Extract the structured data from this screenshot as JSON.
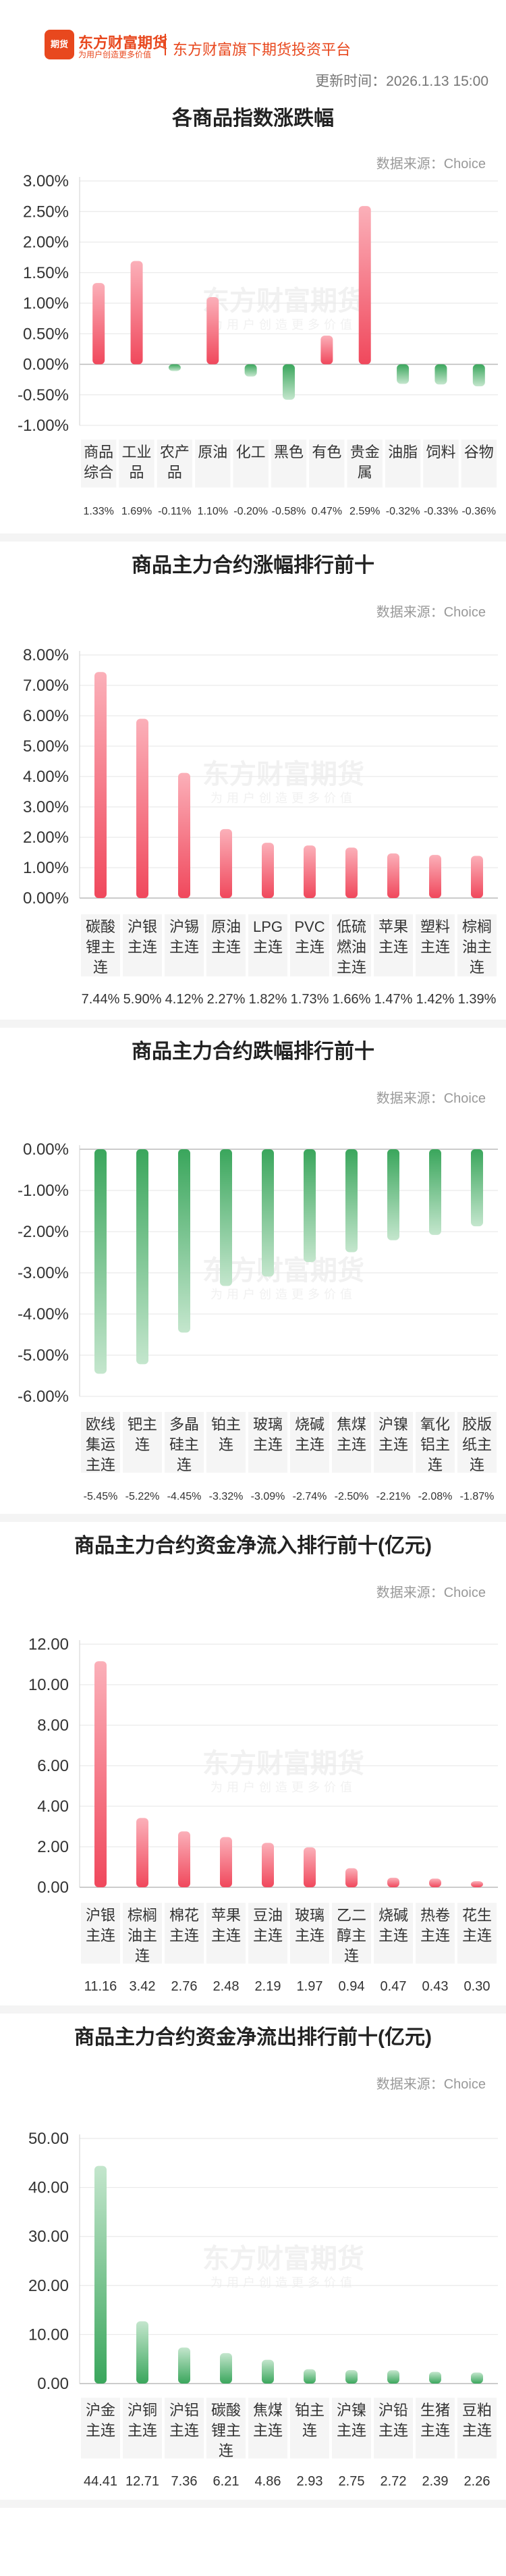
{
  "header": {
    "logo_text": "期货",
    "brand_name": "东方财富期货",
    "brand_slogan": "为用户创造更多价值",
    "tagline": "东方财富旗下期货投资平台",
    "update_label": "更新时间：2026.1.13 15:00"
  },
  "watermark": {
    "main": "东方财富期货",
    "sub": "为用户创造更多价值"
  },
  "source_label": "数据来源：Choice",
  "colors": {
    "up": "#f0485c",
    "down": "#3aa65c",
    "brand": "#e8481e"
  },
  "charts": [
    {
      "title": "各商品指数涨跌幅",
      "chart_data": {
        "type": "bar",
        "categories": [
          [
            "商品",
            "综合"
          ],
          [
            "工业",
            "品"
          ],
          [
            "农产",
            "品"
          ],
          [
            "原油"
          ],
          [
            "化工"
          ],
          [
            "黑色"
          ],
          [
            "有色"
          ],
          [
            "贵金",
            "属"
          ],
          [
            "油脂"
          ],
          [
            "饲料"
          ],
          [
            "谷物"
          ]
        ],
        "values": [
          1.33,
          1.69,
          -0.11,
          1.1,
          -0.2,
          -0.58,
          0.47,
          2.59,
          -0.32,
          -0.33,
          -0.36
        ],
        "value_labels": [
          "1.33%",
          "1.69%",
          "-0.11%",
          "1.10%",
          "-0.20%",
          "-0.58%",
          "0.47%",
          "2.59%",
          "-0.32%",
          "-0.33%",
          "-0.36%"
        ],
        "yticks": [
          "3.00%",
          "2.50%",
          "2.00%",
          "1.50%",
          "1.00%",
          "0.50%",
          "0.00%",
          "-0.50%",
          "-1.00%"
        ],
        "ylim": [
          -1.0,
          3.0
        ]
      }
    },
    {
      "title": "商品主力合约涨幅排行前十",
      "chart_data": {
        "type": "bar",
        "categories": [
          [
            "碳酸",
            "锂主",
            "连"
          ],
          [
            "沪银",
            "主连"
          ],
          [
            "沪锡",
            "主连"
          ],
          [
            "原油",
            "主连"
          ],
          [
            "LPG",
            "主连"
          ],
          [
            "PVC",
            "主连"
          ],
          [
            "低硫",
            "燃油",
            "主连"
          ],
          [
            "苹果",
            "主连"
          ],
          [
            "塑料",
            "主连"
          ],
          [
            "棕榈",
            "油主",
            "连"
          ]
        ],
        "values": [
          7.44,
          5.9,
          4.12,
          2.27,
          1.82,
          1.73,
          1.66,
          1.47,
          1.42,
          1.39
        ],
        "value_labels": [
          "7.44%",
          "5.90%",
          "4.12%",
          "2.27%",
          "1.82%",
          "1.73%",
          "1.66%",
          "1.47%",
          "1.42%",
          "1.39%"
        ],
        "yticks": [
          "8.00%",
          "7.00%",
          "6.00%",
          "5.00%",
          "4.00%",
          "3.00%",
          "2.00%",
          "1.00%",
          "0.00%"
        ],
        "ylim": [
          0,
          8.0
        ]
      }
    },
    {
      "title": "商品主力合约跌幅排行前十",
      "chart_data": {
        "type": "bar",
        "categories": [
          [
            "欧线",
            "集运",
            "主连"
          ],
          [
            "钯主",
            "连"
          ],
          [
            "多晶",
            "硅主",
            "连"
          ],
          [
            "铂主",
            "连"
          ],
          [
            "玻璃",
            "主连"
          ],
          [
            "烧碱",
            "主连"
          ],
          [
            "焦煤",
            "主连"
          ],
          [
            "沪镍",
            "主连"
          ],
          [
            "氧化",
            "铝主",
            "连"
          ],
          [
            "胶版",
            "纸主",
            "连"
          ]
        ],
        "values": [
          -5.45,
          -5.22,
          -4.45,
          -3.32,
          -3.09,
          -2.74,
          -2.5,
          -2.21,
          -2.08,
          -1.87
        ],
        "value_labels": [
          "-5.45%",
          "-5.22%",
          "-4.45%",
          "-3.32%",
          "-3.09%",
          "-2.74%",
          "-2.50%",
          "-2.21%",
          "-2.08%",
          "-1.87%"
        ],
        "yticks": [
          "0.00%",
          "-1.00%",
          "-2.00%",
          "-3.00%",
          "-4.00%",
          "-5.00%",
          "-6.00%"
        ],
        "ylim": [
          -6.0,
          0
        ]
      }
    },
    {
      "title": "商品主力合约资金净流入排行前十(亿元)",
      "chart_data": {
        "type": "bar",
        "categories": [
          [
            "沪银",
            "主连"
          ],
          [
            "棕榈",
            "油主",
            "连"
          ],
          [
            "棉花",
            "主连"
          ],
          [
            "苹果",
            "主连"
          ],
          [
            "豆油",
            "主连"
          ],
          [
            "玻璃",
            "主连"
          ],
          [
            "乙二",
            "醇主",
            "连"
          ],
          [
            "烧碱",
            "主连"
          ],
          [
            "热卷",
            "主连"
          ],
          [
            "花生",
            "主连"
          ]
        ],
        "values": [
          11.16,
          3.42,
          2.76,
          2.48,
          2.19,
          1.97,
          0.94,
          0.47,
          0.43,
          0.3
        ],
        "value_labels": [
          "11.16",
          "3.42",
          "2.76",
          "2.48",
          "2.19",
          "1.97",
          "0.94",
          "0.47",
          "0.43",
          "0.30"
        ],
        "yticks": [
          "12.00",
          "10.00",
          "8.00",
          "6.00",
          "4.00",
          "2.00",
          "0.00"
        ],
        "ylim": [
          0,
          12.0
        ]
      }
    },
    {
      "title": "商品主力合约资金净流出排行前十(亿元)",
      "chart_data": {
        "type": "bar",
        "categories": [
          [
            "沪金",
            "主连"
          ],
          [
            "沪铜",
            "主连"
          ],
          [
            "沪铝",
            "主连"
          ],
          [
            "碳酸",
            "锂主",
            "连"
          ],
          [
            "焦煤",
            "主连"
          ],
          [
            "铂主",
            "连"
          ],
          [
            "沪镍",
            "主连"
          ],
          [
            "沪铅",
            "主连"
          ],
          [
            "生猪",
            "主连"
          ],
          [
            "豆粕",
            "主连"
          ]
        ],
        "values": [
          44.41,
          12.71,
          7.36,
          6.21,
          4.86,
          2.93,
          2.75,
          2.72,
          2.39,
          2.26
        ],
        "value_labels": [
          "44.41",
          "12.71",
          "7.36",
          "6.21",
          "4.86",
          "2.93",
          "2.75",
          "2.72",
          "2.39",
          "2.26"
        ],
        "yticks": [
          "50.00",
          "40.00",
          "30.00",
          "20.00",
          "10.00",
          "0.00"
        ],
        "ylim": [
          0,
          50.0
        ]
      }
    }
  ]
}
